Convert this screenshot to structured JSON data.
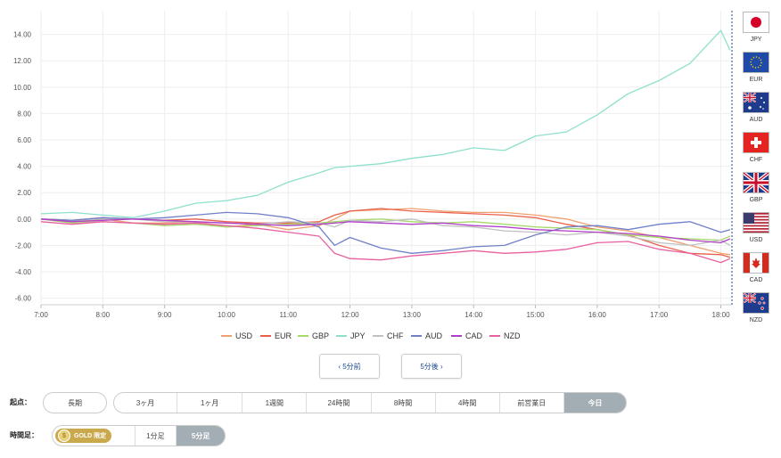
{
  "chart_data": {
    "type": "line",
    "x_ticks": [
      "7:00",
      "8:00",
      "9:00",
      "10:00",
      "11:00",
      "12:00",
      "13:00",
      "14:00",
      "15:00",
      "16:00",
      "17:00",
      "18:00"
    ],
    "y_ticks": [
      "14.00",
      "12.00",
      "10.00",
      "8.00",
      "6.00",
      "4.00",
      "2.00",
      "0.00",
      "-2.00",
      "-4.00",
      "-6.00"
    ],
    "ylim": [
      -6.5,
      15.8
    ],
    "xlim": [
      7.0,
      18.18
    ],
    "grid": true,
    "legend_position": "bottom",
    "x": [
      7.0,
      7.5,
      8.0,
      8.5,
      9.0,
      9.5,
      10.0,
      10.5,
      11.0,
      11.5,
      11.75,
      12.0,
      12.5,
      13.0,
      13.5,
      14.0,
      14.5,
      15.0,
      15.5,
      16.0,
      16.5,
      17.0,
      17.5,
      18.0,
      18.15
    ],
    "series": [
      {
        "name": "USD",
        "color": "#f0a070",
        "values": [
          0.0,
          -0.2,
          0.0,
          -0.3,
          -0.3,
          -0.2,
          -0.6,
          -0.4,
          -0.8,
          -0.5,
          0.0,
          0.6,
          0.7,
          0.8,
          0.6,
          0.5,
          0.5,
          0.3,
          0.0,
          -0.6,
          -0.9,
          -1.4,
          -2.0,
          -2.6,
          -2.7
        ]
      },
      {
        "name": "EUR",
        "color": "#e8604c",
        "values": [
          0.0,
          -0.1,
          0.1,
          0.0,
          -0.1,
          0.0,
          -0.2,
          -0.3,
          -0.3,
          -0.2,
          0.3,
          0.6,
          0.8,
          0.6,
          0.5,
          0.4,
          0.3,
          0.1,
          -0.4,
          -0.8,
          -1.2,
          -2.0,
          -2.6,
          -2.7,
          -2.9
        ]
      },
      {
        "name": "GBP",
        "color": "#a6d96a",
        "values": [
          0.0,
          -0.3,
          -0.2,
          -0.3,
          -0.5,
          -0.4,
          -0.6,
          -0.5,
          -0.4,
          -0.3,
          -0.2,
          -0.1,
          0.0,
          -0.2,
          -0.3,
          -0.2,
          -0.4,
          -0.6,
          -0.7,
          -0.8,
          -1.2,
          -1.4,
          -1.5,
          -1.6,
          -1.3
        ]
      },
      {
        "name": "JPY",
        "color": "#8ee0cc",
        "values": [
          0.4,
          0.5,
          0.3,
          0.1,
          0.6,
          1.2,
          1.4,
          1.8,
          2.8,
          3.5,
          3.9,
          4.0,
          4.2,
          4.6,
          4.9,
          5.4,
          5.2,
          6.3,
          6.6,
          7.9,
          9.5,
          10.5,
          11.8,
          14.3,
          12.8
        ]
      },
      {
        "name": "CHF",
        "color": "#c0c0c0",
        "values": [
          0.0,
          -0.1,
          0.0,
          0.0,
          -0.2,
          -0.2,
          -0.3,
          -0.4,
          -0.2,
          -0.3,
          -0.6,
          -0.1,
          -0.2,
          0.0,
          -0.5,
          -0.6,
          -0.9,
          -1.0,
          -1.2,
          -1.0,
          -1.3,
          -1.8,
          -2.0,
          -1.6,
          -2.0
        ]
      },
      {
        "name": "AUD",
        "color": "#7080c8",
        "values": [
          0.0,
          -0.1,
          0.1,
          0.0,
          0.1,
          0.3,
          0.5,
          0.4,
          0.1,
          -0.6,
          -2.0,
          -1.4,
          -2.2,
          -2.6,
          -2.4,
          -2.1,
          -2.0,
          -1.2,
          -0.6,
          -0.5,
          -0.8,
          -0.4,
          -0.2,
          -1.0,
          -0.8
        ]
      },
      {
        "name": "CAD",
        "color": "#b040c8",
        "values": [
          0.0,
          -0.2,
          -0.1,
          0.0,
          -0.1,
          -0.2,
          -0.3,
          -0.4,
          -0.5,
          -0.4,
          -0.3,
          -0.2,
          -0.3,
          -0.4,
          -0.3,
          -0.5,
          -0.6,
          -0.8,
          -0.9,
          -1.0,
          -1.1,
          -1.3,
          -1.6,
          -1.8,
          -1.5
        ]
      },
      {
        "name": "NZD",
        "color": "#e860a0",
        "values": [
          -0.2,
          -0.4,
          -0.2,
          -0.3,
          -0.4,
          -0.3,
          -0.5,
          -0.7,
          -1.0,
          -1.3,
          -2.6,
          -3.0,
          -3.1,
          -2.8,
          -2.6,
          -2.4,
          -2.6,
          -2.5,
          -2.3,
          -1.8,
          -1.7,
          -2.3,
          -2.6,
          -3.3,
          -3.0
        ]
      }
    ]
  },
  "flags": [
    {
      "code": "JPY",
      "icon": "japan-flag"
    },
    {
      "code": "EUR",
      "icon": "eu-flag"
    },
    {
      "code": "AUD",
      "icon": "australia-flag"
    },
    {
      "code": "CHF",
      "icon": "switzerland-flag"
    },
    {
      "code": "GBP",
      "icon": "uk-flag"
    },
    {
      "code": "USD",
      "icon": "usa-flag"
    },
    {
      "code": "CAD",
      "icon": "canada-flag"
    },
    {
      "code": "NZD",
      "icon": "new-zealand-flag"
    }
  ],
  "nav": {
    "prev": "‹ 5分前",
    "next": "5分後 ›"
  },
  "origin": {
    "label": "起点：",
    "long": "長期",
    "options": [
      "3ヶ月",
      "1ヶ月",
      "1週間",
      "24時間",
      "8時間",
      "4時間",
      "前営業日",
      "今日"
    ],
    "selected": "今日"
  },
  "timeframe": {
    "label": "時間足：",
    "gold_badge": "GOLD 限定",
    "options": [
      "1分足",
      "5分足"
    ],
    "selected": "5分足"
  }
}
